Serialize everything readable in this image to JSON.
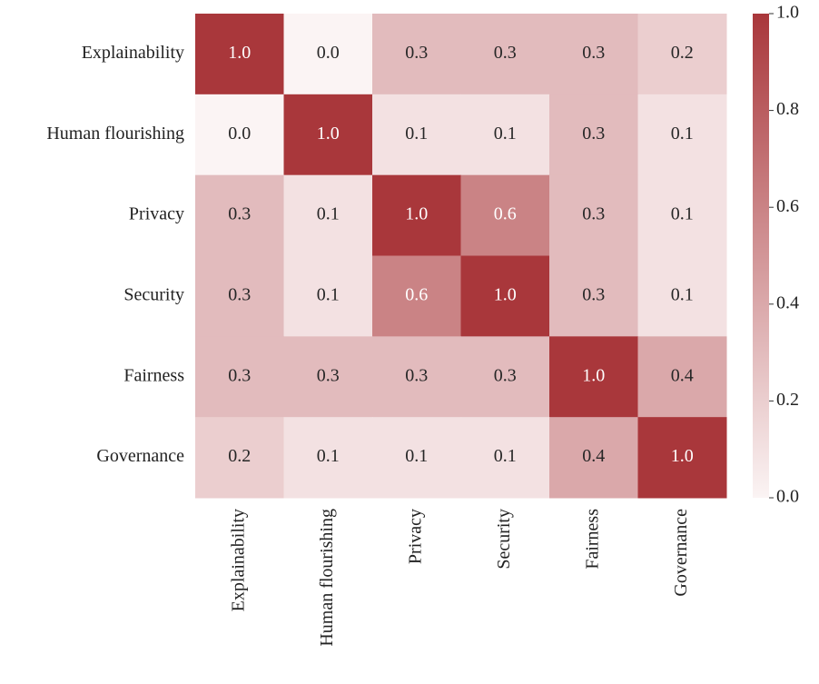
{
  "chart_data": {
    "type": "heatmap",
    "x_categories": [
      "Explainability",
      "Human flourishing",
      "Privacy",
      "Security",
      "Fairness",
      "Governance"
    ],
    "y_categories": [
      "Explainability",
      "Human flourishing",
      "Privacy",
      "Security",
      "Fairness",
      "Governance"
    ],
    "values": [
      [
        1.0,
        0.0,
        0.3,
        0.3,
        0.3,
        0.2
      ],
      [
        0.0,
        1.0,
        0.1,
        0.1,
        0.3,
        0.1
      ],
      [
        0.3,
        0.1,
        1.0,
        0.6,
        0.3,
        0.1
      ],
      [
        0.3,
        0.1,
        0.6,
        1.0,
        0.3,
        0.1
      ],
      [
        0.3,
        0.3,
        0.3,
        0.3,
        1.0,
        0.4
      ],
      [
        0.2,
        0.1,
        0.1,
        0.1,
        0.4,
        1.0
      ]
    ],
    "value_labels": [
      [
        "1.0",
        "0.0",
        "0.3",
        "0.3",
        "0.3",
        "0.2"
      ],
      [
        "0.0",
        "1.0",
        "0.1",
        "0.1",
        "0.3",
        "0.1"
      ],
      [
        "0.3",
        "0.1",
        "1.0",
        "0.6",
        "0.3",
        "0.1"
      ],
      [
        "0.3",
        "0.1",
        "0.6",
        "1.0",
        "0.3",
        "0.1"
      ],
      [
        "0.3",
        "0.3",
        "0.3",
        "0.3",
        "1.0",
        "0.4"
      ],
      [
        "0.2",
        "0.1",
        "0.1",
        "0.1",
        "0.4",
        "1.0"
      ]
    ],
    "colormap": [
      "#fbf4f4",
      "#a9373b"
    ],
    "clim": [
      0,
      1
    ],
    "cticks": [
      {
        "value": 0,
        "label": "0.0"
      },
      {
        "value": 0.2,
        "label": "0.2"
      },
      {
        "value": 0.4,
        "label": "0.4"
      },
      {
        "value": 0.6,
        "label": "0.6"
      },
      {
        "value": 0.8,
        "label": "0.8"
      },
      {
        "value": 1,
        "label": "1.0"
      }
    ]
  }
}
